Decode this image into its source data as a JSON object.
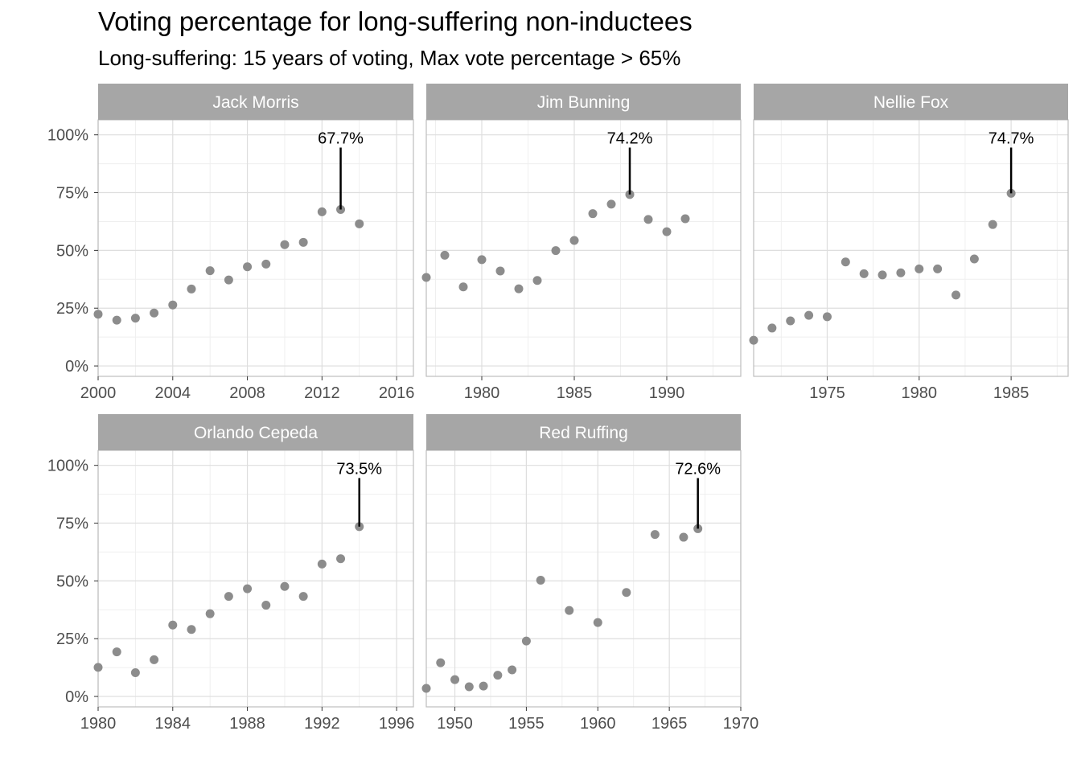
{
  "title": "Voting percentage for long-suffering non-inductees",
  "subtitle": "Long-suffering: 15 years of voting, Max vote percentage > 65%",
  "colors": {
    "point": "#8c8c8c",
    "strip": "#a6a6a6",
    "strip_text": "#ffffff",
    "grid_major": "#dedede",
    "grid_minor": "#efefef",
    "panel_border": "#bdbdbd",
    "axis_text": "#4d4d4d",
    "annotation": "#000000"
  },
  "chart_data": [
    {
      "type": "scatter",
      "facet": "Jack Morris",
      "ylim": [
        0,
        1
      ],
      "ytick_labels": [
        "0%",
        "25%",
        "50%",
        "75%",
        "100%"
      ],
      "xlim": [
        2000,
        2016.9
      ],
      "xticks": [
        2000,
        2004,
        2008,
        2012,
        2016
      ],
      "x": [
        2000,
        2001,
        2002,
        2003,
        2004,
        2005,
        2006,
        2007,
        2008,
        2009,
        2010,
        2011,
        2012,
        2013,
        2014
      ],
      "y": [
        0.224,
        0.198,
        0.207,
        0.229,
        0.264,
        0.333,
        0.412,
        0.372,
        0.429,
        0.441,
        0.525,
        0.535,
        0.667,
        0.677,
        0.615
      ],
      "annotation": {
        "x": 2013,
        "y": 0.677,
        "label": "67.7%"
      }
    },
    {
      "type": "scatter",
      "facet": "Jim Bunning",
      "ylim": [
        0,
        1
      ],
      "ytick_labels": [
        "0%",
        "25%",
        "50%",
        "75%",
        "100%"
      ],
      "xlim": [
        1977,
        1994
      ],
      "xticks": [
        1980,
        1985,
        1990
      ],
      "x": [
        1977,
        1978,
        1979,
        1980,
        1981,
        1982,
        1983,
        1984,
        1985,
        1986,
        1987,
        1988,
        1989,
        1990,
        1991
      ],
      "y": [
        0.383,
        0.479,
        0.342,
        0.46,
        0.411,
        0.334,
        0.37,
        0.499,
        0.543,
        0.659,
        0.7,
        0.742,
        0.634,
        0.581,
        0.637
      ],
      "annotation": {
        "x": 1988,
        "y": 0.742,
        "label": "74.2%"
      }
    },
    {
      "type": "scatter",
      "facet": "Nellie Fox",
      "ylim": [
        0,
        1
      ],
      "ytick_labels": [
        "0%",
        "25%",
        "50%",
        "75%",
        "100%"
      ],
      "xlim": [
        1971,
        1988.1
      ],
      "xticks": [
        1975,
        1980,
        1985
      ],
      "x": [
        1971,
        1972,
        1973,
        1974,
        1975,
        1976,
        1977,
        1978,
        1979,
        1980,
        1981,
        1982,
        1983,
        1984,
        1985
      ],
      "y": [
        0.111,
        0.164,
        0.195,
        0.219,
        0.213,
        0.45,
        0.399,
        0.394,
        0.403,
        0.42,
        0.42,
        0.307,
        0.463,
        0.612,
        0.747
      ],
      "annotation": {
        "x": 1985,
        "y": 0.747,
        "label": "74.7%"
      }
    },
    {
      "type": "scatter",
      "facet": "Orlando Cepeda",
      "ylim": [
        0,
        1
      ],
      "ytick_labels": [
        "0%",
        "25%",
        "50%",
        "75%",
        "100%"
      ],
      "xlim": [
        1980,
        1996.9
      ],
      "xticks": [
        1980,
        1984,
        1988,
        1992,
        1996
      ],
      "x": [
        1980,
        1981,
        1982,
        1983,
        1984,
        1985,
        1986,
        1987,
        1988,
        1989,
        1990,
        1991,
        1992,
        1993,
        1994
      ],
      "y": [
        0.126,
        0.193,
        0.103,
        0.159,
        0.309,
        0.29,
        0.358,
        0.433,
        0.466,
        0.395,
        0.476,
        0.433,
        0.573,
        0.596,
        0.735
      ],
      "annotation": {
        "x": 1994,
        "y": 0.735,
        "label": "73.5%"
      }
    },
    {
      "type": "scatter",
      "facet": "Red Ruffing",
      "ylim": [
        0,
        1
      ],
      "ytick_labels": [
        "0%",
        "25%",
        "50%",
        "75%",
        "100%"
      ],
      "xlim": [
        1948,
        1970
      ],
      "xticks": [
        1950,
        1955,
        1960,
        1965,
        1970
      ],
      "x": [
        1948,
        1949,
        1950,
        1951,
        1952,
        1953,
        1954,
        1955,
        1956,
        1958,
        1960,
        1962,
        1964,
        1966,
        1967
      ],
      "y": [
        0.035,
        0.146,
        0.073,
        0.042,
        0.045,
        0.092,
        0.115,
        0.24,
        0.503,
        0.372,
        0.32,
        0.45,
        0.701,
        0.689,
        0.726
      ],
      "annotation": {
        "x": 1967,
        "y": 0.726,
        "label": "72.6%"
      }
    }
  ]
}
